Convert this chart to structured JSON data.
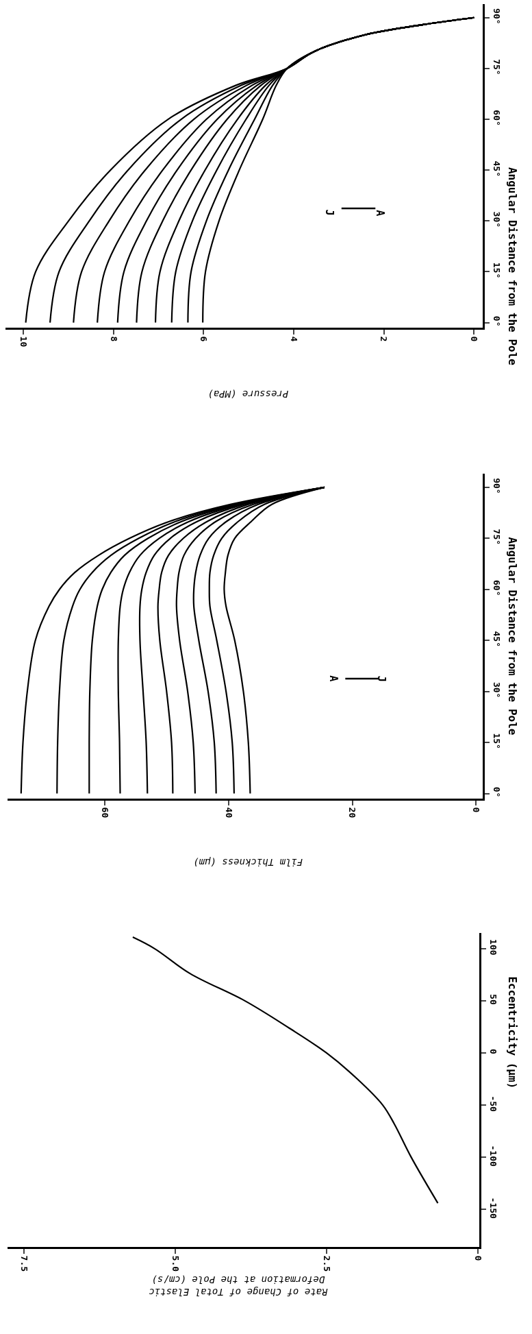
{
  "chart_data": [
    {
      "type": "line",
      "xlabel": "Pressure (MPa)",
      "ylabel": "Angular Distance from the Pole",
      "series": [
        {
          "color": "#000000",
          "x": [
            9.95,
            9.73,
            9.0,
            8.07,
            6.79,
            5.29,
            4.15,
            3.55,
            2.4,
            1.1,
            0
          ],
          "values": [
            0,
            15,
            30,
            45,
            60,
            70,
            75,
            80,
            85,
            88,
            90
          ]
        },
        {
          "color": "#000000",
          "x": [
            9.41,
            9.21,
            8.54,
            7.68,
            6.5,
            5.17,
            4.15,
            3.55,
            2.4,
            1.1,
            0
          ],
          "values": [
            0,
            15,
            30,
            45,
            60,
            70,
            75,
            80,
            85,
            88,
            90
          ]
        },
        {
          "color": "#000000",
          "x": [
            8.89,
            8.71,
            8.1,
            7.3,
            6.22,
            5.05,
            4.15,
            3.55,
            2.4,
            1.1,
            0
          ],
          "values": [
            0,
            15,
            30,
            45,
            60,
            70,
            75,
            80,
            85,
            88,
            90
          ]
        },
        {
          "color": "#000000",
          "x": [
            8.36,
            8.2,
            7.65,
            6.91,
            5.94,
            4.93,
            4.15,
            3.55,
            2.4,
            1.1,
            0
          ],
          "values": [
            0,
            15,
            30,
            45,
            60,
            70,
            75,
            80,
            85,
            88,
            90
          ]
        },
        {
          "color": "#000000",
          "x": [
            7.91,
            7.77,
            7.27,
            6.59,
            5.7,
            4.82,
            4.15,
            3.55,
            2.4,
            1.1,
            0
          ],
          "values": [
            0,
            15,
            30,
            45,
            60,
            70,
            75,
            80,
            85,
            88,
            90
          ]
        },
        {
          "color": "#000000",
          "x": [
            7.49,
            7.37,
            6.91,
            6.28,
            5.48,
            4.73,
            4.15,
            3.55,
            2.4,
            1.1,
            0
          ],
          "values": [
            0,
            15,
            30,
            45,
            60,
            70,
            75,
            80,
            85,
            88,
            90
          ]
        },
        {
          "color": "#000000",
          "x": [
            7.07,
            6.97,
            6.55,
            5.97,
            5.25,
            4.63,
            4.15,
            3.55,
            2.4,
            1.1,
            0
          ],
          "values": [
            0,
            15,
            30,
            45,
            60,
            70,
            75,
            80,
            85,
            88,
            90
          ]
        },
        {
          "color": "#000000",
          "x": [
            6.71,
            6.62,
            6.25,
            5.71,
            5.06,
            4.55,
            4.15,
            3.55,
            2.4,
            1.1,
            0
          ],
          "values": [
            0,
            15,
            30,
            45,
            60,
            70,
            75,
            80,
            85,
            88,
            90
          ]
        },
        {
          "color": "#000000",
          "x": [
            6.35,
            6.28,
            5.94,
            5.45,
            4.87,
            4.47,
            4.15,
            3.55,
            2.4,
            1.1,
            0
          ],
          "values": [
            0,
            15,
            30,
            45,
            60,
            70,
            75,
            80,
            85,
            88,
            90
          ]
        },
        {
          "color": "#000000",
          "x": [
            6.02,
            5.96,
            5.66,
            5.21,
            4.69,
            4.39,
            4.15,
            3.55,
            2.4,
            1.1,
            0
          ],
          "values": [
            0,
            15,
            30,
            45,
            60,
            70,
            75,
            80,
            85,
            88,
            90
          ]
        }
      ],
      "xlim": [
        10.4,
        -0.2
      ],
      "ylim": [
        -1.5,
        94
      ],
      "xticks": [
        0,
        2,
        4,
        6,
        8,
        10
      ],
      "yticks": [
        {
          "value": 0,
          "label": "0°"
        },
        {
          "value": 15,
          "label": "15°"
        },
        {
          "value": 30,
          "label": "30°"
        },
        {
          "value": 45,
          "label": "45°"
        },
        {
          "value": 60,
          "label": "60°"
        },
        {
          "value": 75,
          "label": "75°"
        },
        {
          "value": 90,
          "label": "90°"
        }
      ],
      "annotations": [
        "J",
        "A"
      ],
      "marker": "none",
      "line_style": "solid"
    },
    {
      "type": "line",
      "xlabel": "Film Thickness (µm)",
      "ylabel": "Angular Distance from the Pole",
      "series": [
        {
          "color": "#000000",
          "x": [
            73.5,
            73.2,
            72.5,
            71.2,
            69.0,
            67.3,
            64.8,
            61.0,
            56.0,
            49.5,
            39.6,
            24.5
          ],
          "values": [
            0,
            15,
            30,
            45,
            55,
            60,
            65,
            70,
            75,
            80,
            85,
            90
          ]
        },
        {
          "color": "#000000",
          "x": [
            67.7,
            67.6,
            67.3,
            66.6,
            65.2,
            64.0,
            62.0,
            59.0,
            54.5,
            48.5,
            39.0,
            24.5
          ],
          "values": [
            0,
            15,
            30,
            45,
            55,
            60,
            65,
            70,
            75,
            80,
            85,
            90
          ]
        },
        {
          "color": "#000000",
          "x": [
            62.5,
            62.5,
            62.4,
            62.0,
            61.2,
            60.4,
            59.0,
            56.8,
            53.0,
            47.5,
            38.5,
            24.5
          ],
          "values": [
            0,
            15,
            30,
            45,
            55,
            60,
            65,
            70,
            75,
            80,
            85,
            90
          ]
        },
        {
          "color": "#000000",
          "x": [
            57.5,
            57.6,
            57.8,
            57.8,
            57.5,
            57.0,
            56.0,
            54.3,
            51.2,
            46.3,
            38.0,
            24.5
          ],
          "values": [
            0,
            15,
            30,
            45,
            55,
            60,
            65,
            70,
            75,
            80,
            85,
            90
          ]
        },
        {
          "color": "#000000",
          "x": [
            53.1,
            53.3,
            53.8,
            54.3,
            54.3,
            54.0,
            53.3,
            52.0,
            49.4,
            45.0,
            37.5,
            24.5
          ],
          "values": [
            0,
            15,
            30,
            45,
            55,
            60,
            65,
            70,
            75,
            80,
            85,
            90
          ]
        },
        {
          "color": "#000000",
          "x": [
            49.0,
            49.2,
            50.0,
            51.1,
            51.4,
            51.2,
            50.8,
            49.7,
            47.3,
            43.4,
            36.8,
            24.5
          ],
          "values": [
            0,
            15,
            30,
            45,
            55,
            60,
            65,
            70,
            75,
            80,
            85,
            90
          ]
        },
        {
          "color": "#000000",
          "x": [
            45.4,
            45.7,
            46.6,
            47.9,
            48.4,
            48.3,
            48.0,
            47.2,
            45.3,
            42.0,
            36.0,
            24.5
          ],
          "values": [
            0,
            15,
            30,
            45,
            55,
            60,
            65,
            70,
            75,
            80,
            85,
            90
          ]
        },
        {
          "color": "#000000",
          "x": [
            42.0,
            42.3,
            43.3,
            44.8,
            45.6,
            45.6,
            45.3,
            44.6,
            43.2,
            40.3,
            35.2,
            24.5
          ],
          "values": [
            0,
            15,
            30,
            45,
            55,
            60,
            65,
            70,
            75,
            80,
            85,
            90
          ]
        },
        {
          "color": "#000000",
          "x": [
            39.1,
            39.4,
            40.4,
            41.9,
            43.0,
            43.1,
            43.0,
            42.4,
            41.1,
            38.4,
            34.2,
            24.5
          ],
          "values": [
            0,
            15,
            30,
            45,
            55,
            60,
            65,
            70,
            75,
            80,
            85,
            90
          ]
        },
        {
          "color": "#000000",
          "x": [
            36.5,
            36.8,
            37.6,
            39.0,
            40.4,
            40.7,
            40.5,
            40.1,
            39.0,
            36.3,
            33.0,
            24.5
          ],
          "values": [
            0,
            15,
            30,
            45,
            55,
            60,
            65,
            70,
            75,
            80,
            85,
            90
          ]
        }
      ],
      "xlim": [
        75.7,
        -1.1
      ],
      "ylim": [
        -1.5,
        94
      ],
      "xticks": [
        0,
        20,
        40,
        60
      ],
      "yticks": [
        {
          "value": 0,
          "label": "0°"
        },
        {
          "value": 15,
          "label": "15°"
        },
        {
          "value": 30,
          "label": "30°"
        },
        {
          "value": 45,
          "label": "45°"
        },
        {
          "value": 60,
          "label": "60°"
        },
        {
          "value": 75,
          "label": "75°"
        },
        {
          "value": 90,
          "label": "90°"
        }
      ],
      "annotations": [
        "J",
        "A"
      ],
      "marker": "none",
      "line_style": "solid"
    },
    {
      "type": "line",
      "xlabel": "Rate of Change of Total Elastic\nDeformation at the Pole (cm/s)",
      "ylabel": "Eccentricity (µm)",
      "series": [
        {
          "color": "#000000",
          "x": [
            0.66,
            1.1,
            1.38,
            1.57,
            1.99,
            2.5,
            3.12,
            3.85,
            4.75,
            5.34,
            5.7
          ],
          "values": [
            -144,
            -100,
            -68,
            -50,
            -25,
            0,
            24,
            50,
            76,
            100,
            111
          ]
        }
      ],
      "xlim": [
        7.77,
        -0.03
      ],
      "ylim": [
        -186,
        115
      ],
      "xticks": [
        0,
        2.5,
        {
          "value": 5,
          "label": "5.0"
        },
        7.5
      ],
      "yticks": [
        -150,
        -100,
        -50,
        0,
        50,
        100
      ],
      "marker": "none",
      "line_style": "solid"
    }
  ]
}
